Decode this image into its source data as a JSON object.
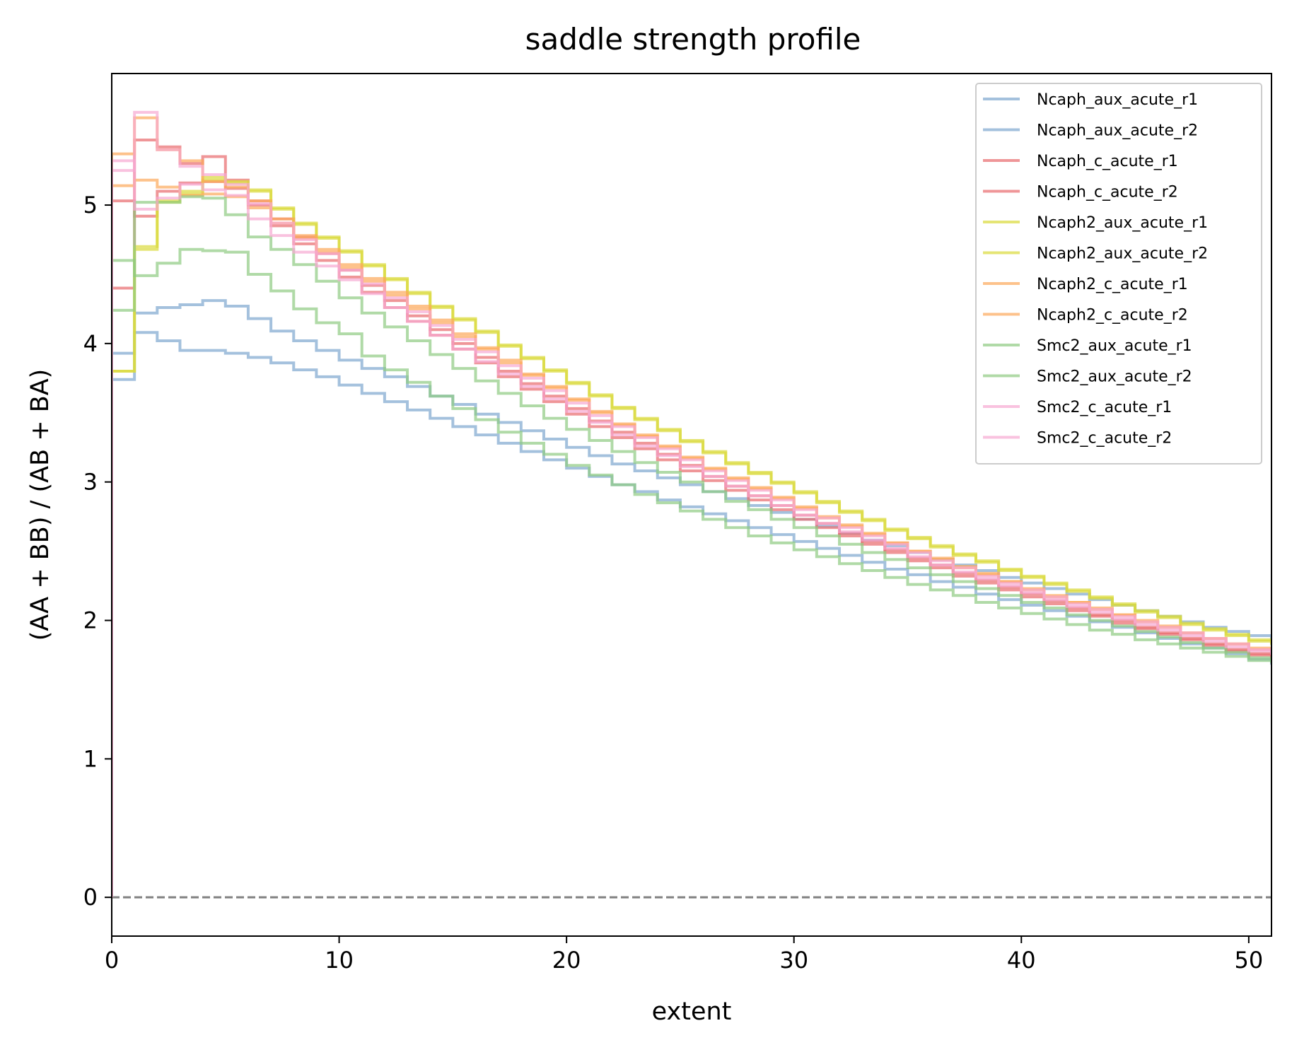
{
  "chart_data": {
    "type": "line",
    "drawstyle": "steps-post",
    "title": "saddle strength profile",
    "xlabel": "extent",
    "ylabel": "(AA + BB) / (AB + BA)",
    "xlim": [
      0,
      51
    ],
    "ylim": [
      -0.28,
      5.95
    ],
    "xticks": [
      0,
      10,
      20,
      30,
      40,
      50
    ],
    "yticks": [
      0,
      1,
      2,
      3,
      4,
      5
    ],
    "grid": false,
    "legend_position": "top-right",
    "reference_line": {
      "y": 0,
      "style": "dashed",
      "color": "#808080"
    },
    "x": [
      0,
      1,
      2,
      3,
      4,
      5,
      6,
      7,
      8,
      9,
      10,
      11,
      12,
      13,
      14,
      15,
      16,
      17,
      18,
      19,
      20,
      21,
      22,
      23,
      24,
      25,
      26,
      27,
      28,
      29,
      30,
      31,
      32,
      33,
      34,
      35,
      36,
      37,
      38,
      39,
      40,
      41,
      42,
      43,
      44,
      45,
      46,
      47,
      48,
      49,
      50,
      51
    ],
    "series": [
      {
        "name": "Ncaph_aux_acute_r1",
        "color": "#7ea6cf",
        "values": [
          3.93,
          4.22,
          4.26,
          4.28,
          4.31,
          4.27,
          4.18,
          4.09,
          4.02,
          3.95,
          3.88,
          3.82,
          3.76,
          3.69,
          3.62,
          3.56,
          3.49,
          3.43,
          3.37,
          3.31,
          3.25,
          3.19,
          3.13,
          3.08,
          3.03,
          2.98,
          2.93,
          2.88,
          2.83,
          2.78,
          2.73,
          2.68,
          2.63,
          2.58,
          2.54,
          2.49,
          2.44,
          2.4,
          2.36,
          2.31,
          2.27,
          2.23,
          2.19,
          2.15,
          2.11,
          2.07,
          2.03,
          1.99,
          1.95,
          1.92,
          1.89,
          1.85
        ]
      },
      {
        "name": "Ncaph_aux_acute_r2",
        "color": "#7ea6cf",
        "values": [
          3.74,
          4.08,
          4.02,
          3.95,
          3.95,
          3.93,
          3.9,
          3.86,
          3.81,
          3.76,
          3.7,
          3.64,
          3.58,
          3.52,
          3.46,
          3.4,
          3.34,
          3.28,
          3.22,
          3.16,
          3.1,
          3.04,
          2.98,
          2.93,
          2.87,
          2.82,
          2.77,
          2.72,
          2.67,
          2.62,
          2.57,
          2.52,
          2.47,
          2.42,
          2.37,
          2.33,
          2.28,
          2.24,
          2.19,
          2.15,
          2.11,
          2.07,
          2.03,
          1.99,
          1.95,
          1.91,
          1.87,
          1.83,
          1.8,
          1.76,
          1.72,
          1.68
        ]
      },
      {
        "name": "Ncaph_c_acute_r1",
        "color": "#e8696c",
        "values": [
          4.4,
          5.47,
          5.42,
          5.3,
          5.35,
          5.18,
          5.0,
          4.85,
          4.72,
          4.6,
          4.48,
          4.37,
          4.26,
          4.16,
          4.06,
          3.96,
          3.86,
          3.76,
          3.67,
          3.58,
          3.49,
          3.4,
          3.32,
          3.24,
          3.16,
          3.08,
          3.01,
          2.94,
          2.87,
          2.8,
          2.73,
          2.67,
          2.61,
          2.55,
          2.49,
          2.43,
          2.38,
          2.32,
          2.27,
          2.22,
          2.17,
          2.12,
          2.07,
          2.03,
          1.98,
          1.94,
          1.9,
          1.86,
          1.82,
          1.78,
          1.75,
          1.72
        ]
      },
      {
        "name": "Ncaph_c_acute_r2",
        "color": "#e8696c",
        "values": [
          5.03,
          4.92,
          5.1,
          5.16,
          5.17,
          5.12,
          5.03,
          4.9,
          4.77,
          4.65,
          4.53,
          4.42,
          4.31,
          4.2,
          4.1,
          4.0,
          3.9,
          3.8,
          3.71,
          3.62,
          3.53,
          3.44,
          3.36,
          3.28,
          3.2,
          3.12,
          3.04,
          2.97,
          2.9,
          2.83,
          2.76,
          2.7,
          2.63,
          2.57,
          2.51,
          2.45,
          2.4,
          2.34,
          2.29,
          2.24,
          2.19,
          2.14,
          2.09,
          2.04,
          2.0,
          1.95,
          1.91,
          1.87,
          1.83,
          1.79,
          1.76,
          1.73
        ]
      },
      {
        "name": "Ncaph2_aux_acute_r1",
        "color": "#dada3a",
        "values": [
          3.8,
          4.68,
          5.02,
          5.08,
          5.18,
          5.16,
          5.1,
          4.97,
          4.86,
          4.76,
          4.66,
          4.56,
          4.46,
          4.36,
          4.26,
          4.17,
          4.08,
          3.98,
          3.89,
          3.8,
          3.71,
          3.62,
          3.53,
          3.45,
          3.37,
          3.29,
          3.21,
          3.13,
          3.06,
          2.99,
          2.92,
          2.85,
          2.78,
          2.72,
          2.65,
          2.59,
          2.53,
          2.47,
          2.42,
          2.36,
          2.31,
          2.26,
          2.21,
          2.16,
          2.11,
          2.06,
          2.02,
          1.97,
          1.93,
          1.89,
          1.85,
          1.82
        ]
      },
      {
        "name": "Ncaph2_aux_acute_r2",
        "color": "#dada3a",
        "values": [
          3.8,
          4.7,
          5.03,
          5.1,
          5.2,
          5.17,
          5.11,
          4.98,
          4.87,
          4.77,
          4.67,
          4.57,
          4.47,
          4.37,
          4.27,
          4.18,
          4.09,
          3.99,
          3.9,
          3.81,
          3.72,
          3.63,
          3.54,
          3.46,
          3.38,
          3.3,
          3.22,
          3.14,
          3.07,
          3.0,
          2.93,
          2.86,
          2.79,
          2.73,
          2.66,
          2.6,
          2.54,
          2.48,
          2.43,
          2.37,
          2.32,
          2.27,
          2.22,
          2.17,
          2.12,
          2.07,
          2.03,
          1.98,
          1.94,
          1.9,
          1.86,
          1.83
        ]
      },
      {
        "name": "Ncaph2_c_acute_r1",
        "color": "#fca85a",
        "values": [
          5.37,
          5.63,
          5.4,
          5.32,
          5.17,
          5.13,
          5.03,
          4.9,
          4.78,
          4.68,
          4.57,
          4.47,
          4.37,
          4.27,
          4.17,
          4.07,
          3.97,
          3.88,
          3.78,
          3.69,
          3.6,
          3.51,
          3.42,
          3.34,
          3.26,
          3.18,
          3.1,
          3.03,
          2.96,
          2.89,
          2.82,
          2.75,
          2.69,
          2.63,
          2.56,
          2.5,
          2.45,
          2.39,
          2.34,
          2.28,
          2.23,
          2.18,
          2.13,
          2.09,
          2.04,
          2.0,
          1.96,
          1.91,
          1.87,
          1.83,
          1.8,
          1.76
        ]
      },
      {
        "name": "Ncaph2_c_acute_r2",
        "color": "#fca85a",
        "values": [
          5.14,
          5.18,
          5.13,
          5.07,
          5.08,
          5.06,
          4.98,
          4.87,
          4.76,
          4.66,
          4.55,
          4.45,
          4.35,
          4.25,
          4.15,
          4.05,
          3.96,
          3.86,
          3.77,
          3.68,
          3.59,
          3.5,
          3.41,
          3.33,
          3.25,
          3.17,
          3.09,
          3.02,
          2.95,
          2.88,
          2.81,
          2.74,
          2.68,
          2.62,
          2.56,
          2.5,
          2.44,
          2.38,
          2.33,
          2.28,
          2.22,
          2.17,
          2.13,
          2.08,
          2.04,
          1.99,
          1.95,
          1.91,
          1.87,
          1.83,
          1.79,
          1.76
        ]
      },
      {
        "name": "Smc2_aux_acute_r1",
        "color": "#8fca82",
        "values": [
          4.6,
          4.49,
          4.58,
          4.68,
          4.67,
          4.66,
          4.5,
          4.38,
          4.25,
          4.15,
          4.07,
          3.91,
          3.81,
          3.72,
          3.62,
          3.53,
          3.45,
          3.36,
          3.28,
          3.2,
          3.12,
          3.05,
          2.98,
          2.91,
          2.85,
          2.79,
          2.73,
          2.67,
          2.61,
          2.56,
          2.51,
          2.46,
          2.41,
          2.36,
          2.31,
          2.26,
          2.22,
          2.18,
          2.13,
          2.09,
          2.05,
          2.01,
          1.97,
          1.93,
          1.9,
          1.86,
          1.83,
          1.8,
          1.77,
          1.74,
          1.71,
          1.69
        ]
      },
      {
        "name": "Smc2_aux_acute_r2",
        "color": "#8fca82",
        "values": [
          4.24,
          5.02,
          5.02,
          5.06,
          5.05,
          4.93,
          4.77,
          4.68,
          4.57,
          4.45,
          4.33,
          4.22,
          4.12,
          4.02,
          3.92,
          3.82,
          3.73,
          3.64,
          3.55,
          3.46,
          3.38,
          3.3,
          3.22,
          3.14,
          3.07,
          3.0,
          2.93,
          2.86,
          2.8,
          2.73,
          2.67,
          2.61,
          2.55,
          2.49,
          2.44,
          2.38,
          2.33,
          2.28,
          2.23,
          2.18,
          2.13,
          2.09,
          2.04,
          2.0,
          1.96,
          1.92,
          1.88,
          1.84,
          1.8,
          1.77,
          1.73,
          1.7
        ]
      },
      {
        "name": "Smc2_c_acute_r1",
        "color": "#f7a8d2",
        "values": [
          5.25,
          5.67,
          5.4,
          5.28,
          5.22,
          5.15,
          5.01,
          4.87,
          4.75,
          4.65,
          4.53,
          4.43,
          4.33,
          4.23,
          4.13,
          4.03,
          3.94,
          3.84,
          3.75,
          3.66,
          3.57,
          3.48,
          3.4,
          3.32,
          3.24,
          3.16,
          3.08,
          3.01,
          2.94,
          2.87,
          2.8,
          2.74,
          2.67,
          2.61,
          2.55,
          2.49,
          2.43,
          2.38,
          2.32,
          2.27,
          2.22,
          2.17,
          2.12,
          2.08,
          2.03,
          1.99,
          1.95,
          1.91,
          1.87,
          1.83,
          1.79,
          1.76
        ]
      },
      {
        "name": "Smc2_c_acute_r2",
        "color": "#f7a8d2",
        "values": [
          5.32,
          4.97,
          5.05,
          5.15,
          5.11,
          5.07,
          4.9,
          4.78,
          4.66,
          4.56,
          4.46,
          4.36,
          4.26,
          4.16,
          4.06,
          3.96,
          3.87,
          3.78,
          3.69,
          3.6,
          3.51,
          3.43,
          3.34,
          3.26,
          3.19,
          3.11,
          3.04,
          2.97,
          2.9,
          2.83,
          2.76,
          2.7,
          2.64,
          2.58,
          2.52,
          2.46,
          2.4,
          2.35,
          2.3,
          2.25,
          2.2,
          2.15,
          2.1,
          2.06,
          2.01,
          1.97,
          1.93,
          1.89,
          1.85,
          1.81,
          1.78,
          1.75
        ]
      }
    ]
  }
}
